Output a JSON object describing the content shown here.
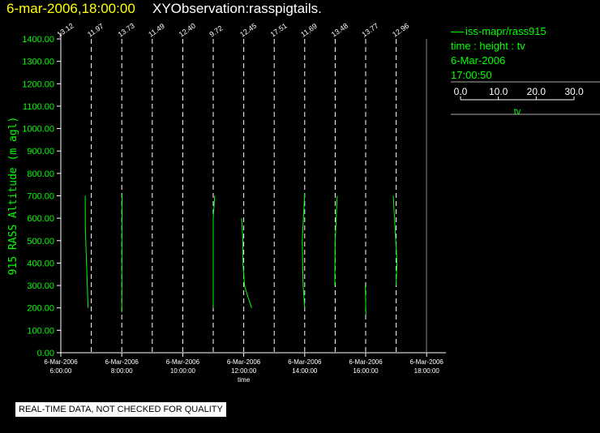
{
  "header": {
    "date_text": "6-mar-2006,18:00:00",
    "title_text": "XYObservation:rasspigtails."
  },
  "legend": {
    "series": "iss-mapr/rass915",
    "vars": "time : height : tv",
    "date": "6-Mar-2006",
    "time": "17:00:50",
    "scale_label": "tv",
    "scale_ticks": [
      "0.0",
      "10.0",
      "20.0",
      "30.0"
    ]
  },
  "disclaimer": "REAL-TIME DATA, NOT CHECKED FOR QUALITY",
  "colors": {
    "data": "#00ff00",
    "axis": "#ffffff",
    "background": "#000000",
    "header_date": "#ffff00"
  },
  "chart_data": {
    "type": "line",
    "ylabel": "915 RASS Altitude (m agl)",
    "xlabel": "time",
    "ylim": [
      0,
      1400
    ],
    "xlim_hours": [
      5,
      18.5
    ],
    "y_ticks": [
      "0.00",
      "100.00",
      "200.00",
      "300.00",
      "400.00",
      "500.00",
      "600.00",
      "700.00",
      "800.00",
      "900.00",
      "1000.00",
      "1100.00",
      "1200.00",
      "1300.00",
      "1400.00"
    ],
    "x_ticks": [
      {
        "hour": 6,
        "date": "6-Mar-2006",
        "time": "6:00:00"
      },
      {
        "hour": 8,
        "date": "6-Mar-2006",
        "time": "8:00:00"
      },
      {
        "hour": 10,
        "date": "6-Mar-2006",
        "time": "10:00:00"
      },
      {
        "hour": 12,
        "date": "6-Mar-2006",
        "time": "12:00:00"
      },
      {
        "hour": 14,
        "date": "6-Mar-2006",
        "time": "14:00:00"
      },
      {
        "hour": 16,
        "date": "6-Mar-2006",
        "time": "16:00:00"
      },
      {
        "hour": 18,
        "date": "6-Mar-2006",
        "time": "18:00:00"
      }
    ],
    "profiles": [
      {
        "hour": 6.0,
        "label": "13.12",
        "points": []
      },
      {
        "hour": 7.0,
        "label": "11.97",
        "points": [
          [
            -0.75,
            700
          ],
          [
            -0.73,
            550
          ],
          [
            -0.4,
            200
          ]
        ]
      },
      {
        "hour": 8.0,
        "label": "13.73",
        "points": [
          [
            0.03,
            710
          ],
          [
            0.02,
            560
          ],
          [
            0.0,
            180
          ]
        ]
      },
      {
        "hour": 9.0,
        "label": "11.49",
        "points": []
      },
      {
        "hour": 10.0,
        "label": "12.40",
        "points": []
      },
      {
        "hour": 11.0,
        "label": "9.72",
        "points": [
          [
            0.18,
            700
          ],
          [
            0.0,
            600
          ],
          [
            0.0,
            200
          ]
        ]
      },
      {
        "hour": 12.0,
        "label": "12.45",
        "points": [
          [
            -0.26,
            600
          ],
          [
            -0.1,
            500
          ],
          [
            -0.1,
            400
          ],
          [
            0.1,
            300
          ],
          [
            0.5,
            250
          ],
          [
            0.98,
            200
          ]
        ]
      },
      {
        "hour": 13.0,
        "label": "17.51",
        "points": []
      },
      {
        "hour": 14.0,
        "label": "11.69",
        "points": [
          [
            0.0,
            710
          ],
          [
            -0.3,
            500
          ],
          [
            -0.2,
            300
          ],
          [
            0.0,
            200
          ]
        ]
      },
      {
        "hour": 15.0,
        "label": "13.48",
        "points": [
          [
            0.25,
            700
          ],
          [
            0.0,
            500
          ],
          [
            -0.05,
            300
          ]
        ]
      },
      {
        "hour": 16.0,
        "label": "13.77",
        "points": [
          [
            -0.05,
            300
          ],
          [
            0.03,
            170
          ]
        ]
      },
      {
        "hour": 17.0,
        "label": "12.96",
        "points": [
          [
            -0.36,
            700
          ],
          [
            -0.05,
            500
          ],
          [
            0.1,
            400
          ],
          [
            -0.02,
            300
          ]
        ]
      }
    ]
  }
}
